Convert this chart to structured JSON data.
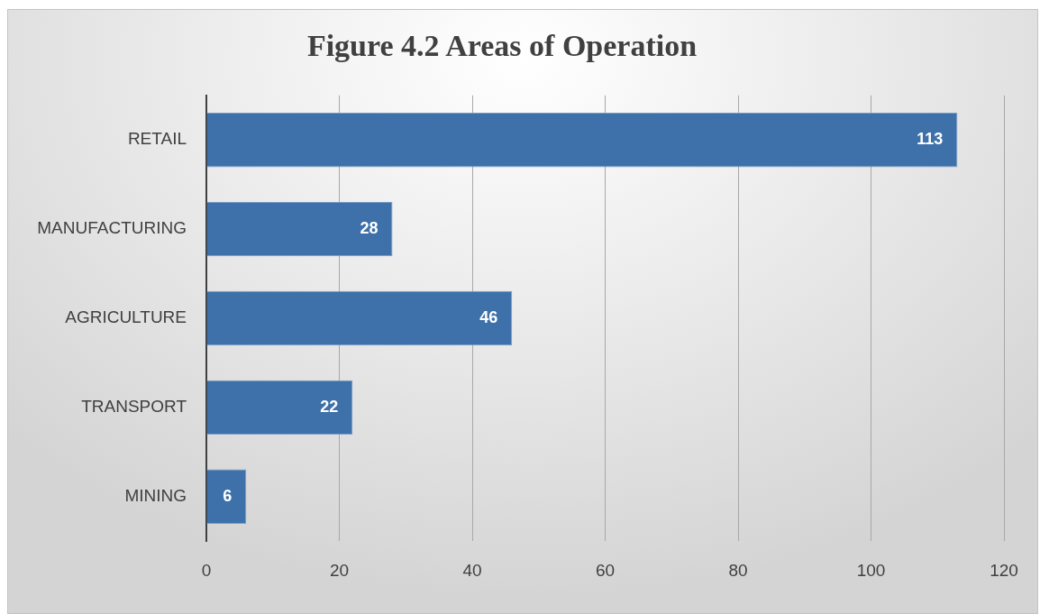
{
  "chart_data": {
    "type": "bar",
    "orientation": "horizontal",
    "title": "Figure 4.2 Areas of Operation",
    "categories": [
      "RETAIL",
      "MANUFACTURING",
      "AGRICULTURE",
      "TRANSPORT",
      "MINING"
    ],
    "values": [
      113,
      28,
      46,
      22,
      6
    ],
    "color": "#3e70aa",
    "xlim": [
      0,
      120
    ],
    "xticks": [
      0,
      20,
      40,
      60,
      80,
      100,
      120
    ],
    "grid": "x",
    "data_labels": true,
    "legend": false
  }
}
